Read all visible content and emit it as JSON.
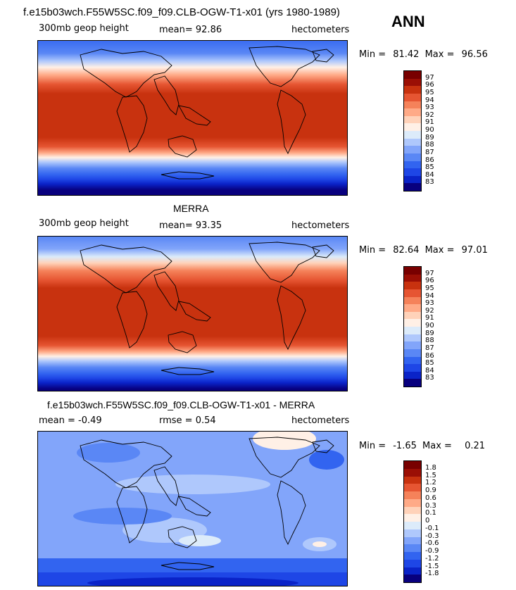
{
  "season": "ANN",
  "panels": [
    {
      "title": "f.e15b03wch.F55W5SC.f09_f09.CLB-OGW-T1-x01 (yrs 1980-1989)",
      "left_label": "300mb geop height",
      "center_label": "mean=  92.86",
      "units": "hectometers",
      "min_label": "Min =",
      "min_value": "81.42",
      "max_label": "Max =",
      "max_value": "96.56",
      "colorbar_levels": [
        "97",
        "96",
        "95",
        "94",
        "93",
        "92",
        "91",
        "90",
        "89",
        "88",
        "87",
        "86",
        "85",
        "84",
        "83"
      ]
    },
    {
      "title": "MERRA",
      "left_label": "300mb geop height",
      "center_label": "mean=  93.35",
      "units": "hectometers",
      "min_label": "Min =",
      "min_value": "82.64",
      "max_label": "Max =",
      "max_value": "97.01",
      "colorbar_levels": [
        "97",
        "96",
        "95",
        "94",
        "93",
        "92",
        "91",
        "90",
        "89",
        "88",
        "87",
        "86",
        "85",
        "84",
        "83"
      ]
    },
    {
      "title": "f.e15b03wch.F55W5SC.f09_f09.CLB-OGW-T1-x01 - MERRA",
      "left_label": "mean =   -0.49",
      "center_label": "rmse =    0.54",
      "units": "hectometers",
      "min_label": "Min =",
      "min_value": "-1.65",
      "max_label": "Max =",
      "max_value": "0.21",
      "colorbar_levels": [
        "1.8",
        "1.5",
        "1.2",
        "0.9",
        "0.6",
        "0.3",
        "0.1",
        "0",
        "-0.1",
        "-0.3",
        "-0.6",
        "-0.9",
        "-1.2",
        "-1.5",
        "-1.8"
      ]
    }
  ],
  "chart_data": [
    {
      "type": "heatmap",
      "title": "f.e15b03wch.F55W5SC.f09_f09.CLB-OGW-T1-x01 (yrs 1980-1989)",
      "variable": "300mb geop height",
      "units": "hectometers",
      "mean": 92.86,
      "min": 81.42,
      "max": 96.56,
      "levels": [
        83,
        84,
        85,
        86,
        87,
        88,
        89,
        90,
        91,
        92,
        93,
        94,
        95,
        96,
        97
      ],
      "colors": [
        "#08007e",
        "#0a23c8",
        "#1e46e6",
        "#3264f0",
        "#5a87f5",
        "#82a5fa",
        "#afc8fc",
        "#dcebfa",
        "#fff0e6",
        "#ffd2b9",
        "#ffaa87",
        "#f5825a",
        "#e65532",
        "#c8320f",
        "#9b0f05",
        "#780000"
      ]
    },
    {
      "type": "heatmap",
      "title": "MERRA",
      "variable": "300mb geop height",
      "units": "hectometers",
      "mean": 93.35,
      "min": 82.64,
      "max": 97.01,
      "levels": [
        83,
        84,
        85,
        86,
        87,
        88,
        89,
        90,
        91,
        92,
        93,
        94,
        95,
        96,
        97
      ],
      "colors": [
        "#08007e",
        "#0a23c8",
        "#1e46e6",
        "#3264f0",
        "#5a87f5",
        "#82a5fa",
        "#afc8fc",
        "#dcebfa",
        "#fff0e6",
        "#ffd2b9",
        "#ffaa87",
        "#f5825a",
        "#e65532",
        "#c8320f",
        "#9b0f05",
        "#780000"
      ]
    },
    {
      "type": "heatmap",
      "title": "f.e15b03wch.F55W5SC.f09_f09.CLB-OGW-T1-x01 - MERRA",
      "units": "hectometers",
      "mean": -0.49,
      "rmse": 0.54,
      "min": -1.65,
      "max": 0.21,
      "levels": [
        -1.8,
        -1.5,
        -1.2,
        -0.9,
        -0.6,
        -0.3,
        -0.1,
        0,
        0.1,
        0.3,
        0.6,
        0.9,
        1.2,
        1.5,
        1.8
      ],
      "colors": [
        "#08007e",
        "#0a23c8",
        "#1e46e6",
        "#3264f0",
        "#5a87f5",
        "#82a5fa",
        "#afc8fc",
        "#dcebfa",
        "#fff0e6",
        "#ffd2b9",
        "#ffaa87",
        "#f5825a",
        "#e65532",
        "#c8320f",
        "#9b0f05",
        "#780000"
      ]
    }
  ]
}
